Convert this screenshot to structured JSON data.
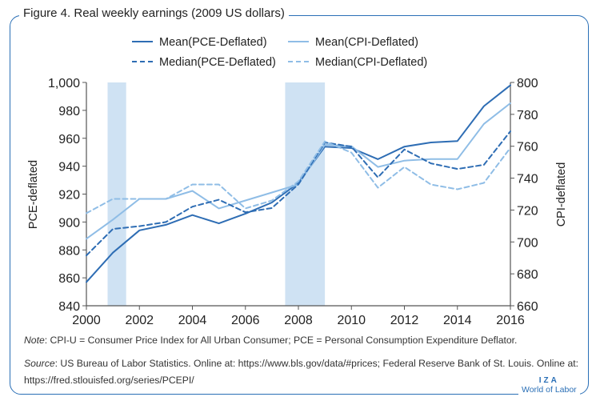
{
  "figure": {
    "title": "Figure 4. Real weekly earnings (2009 US dollars)"
  },
  "chart_data": {
    "type": "line",
    "title": "Figure 4. Real weekly earnings (2009 US dollars)",
    "xlabel": "",
    "ylabel_left": "PCE-deflated",
    "ylabel_right": "CPI-deflated",
    "xlim": [
      2000,
      2016
    ],
    "ylim_left": [
      840,
      1000
    ],
    "ylim_right": [
      660,
      800
    ],
    "x_ticks": [
      "2000",
      "2002",
      "2004",
      "2006",
      "2008",
      "2010",
      "2012",
      "2014",
      "2016"
    ],
    "y_ticks_left": [
      "840",
      "860",
      "880",
      "900",
      "920",
      "940",
      "960",
      "980",
      "1,000"
    ],
    "y_ticks_right": [
      "660",
      "680",
      "700",
      "720",
      "740",
      "760",
      "780",
      "800"
    ],
    "recessions": [
      [
        2000.8,
        2001.5
      ],
      [
        2007.5,
        2009.0
      ]
    ],
    "x": [
      2000,
      2001,
      2002,
      2003,
      2004,
      2005,
      2006,
      2007,
      2008,
      2009,
      2010,
      2011,
      2012,
      2013,
      2014,
      2015,
      2016
    ],
    "series": [
      {
        "name": "Mean(PCE-Deflated)",
        "axis": "left",
        "style": "solid",
        "color": "#2e6db4",
        "values": [
          857,
          878,
          894,
          898,
          905,
          899,
          906,
          914,
          928,
          954,
          953,
          945,
          954,
          957,
          958,
          983,
          998
        ]
      },
      {
        "name": "Mean(CPI-Deflated)",
        "axis": "right",
        "style": "solid",
        "color": "#8fbde6",
        "values": [
          702,
          714,
          727,
          727,
          732,
          721,
          726,
          731,
          736,
          761,
          760,
          747,
          751,
          752,
          752,
          774,
          787
        ]
      },
      {
        "name": "Median(PCE-Deflated)",
        "axis": "left",
        "style": "dashed",
        "color": "#2e6db4",
        "values": [
          876,
          895,
          897,
          900,
          911,
          916,
          907,
          910,
          927,
          957,
          954,
          932,
          952,
          942,
          938,
          941,
          965
        ]
      },
      {
        "name": "Median(CPI-Deflated)",
        "axis": "right",
        "style": "dashed",
        "color": "#8fbde6",
        "values": [
          718,
          727,
          727,
          727,
          736,
          736,
          721,
          726,
          738,
          763,
          756,
          734,
          747,
          736,
          733,
          737,
          759
        ]
      }
    ]
  },
  "notes": {
    "note_label": "Note",
    "note_text": ": CPI-U = Consumer Price Index for All Urban Consumer; PCE = Personal Consumption Expenditure Deflator.",
    "source_label": "Source",
    "source_text": ": US Bureau of Labor Statistics. Online at: https://www.bls.gov/data/#prices; Federal Reserve Bank of St. Louis. Online at: https://fred.stlouisfed.org/series/PCEPI/"
  },
  "brand": {
    "mark": "IZA",
    "name": "World of Labor"
  },
  "colors": {
    "frame": "#2a6fb6",
    "pce": "#2e6db4",
    "cpi": "#8fbde6",
    "recession": "#cfe2f3"
  }
}
